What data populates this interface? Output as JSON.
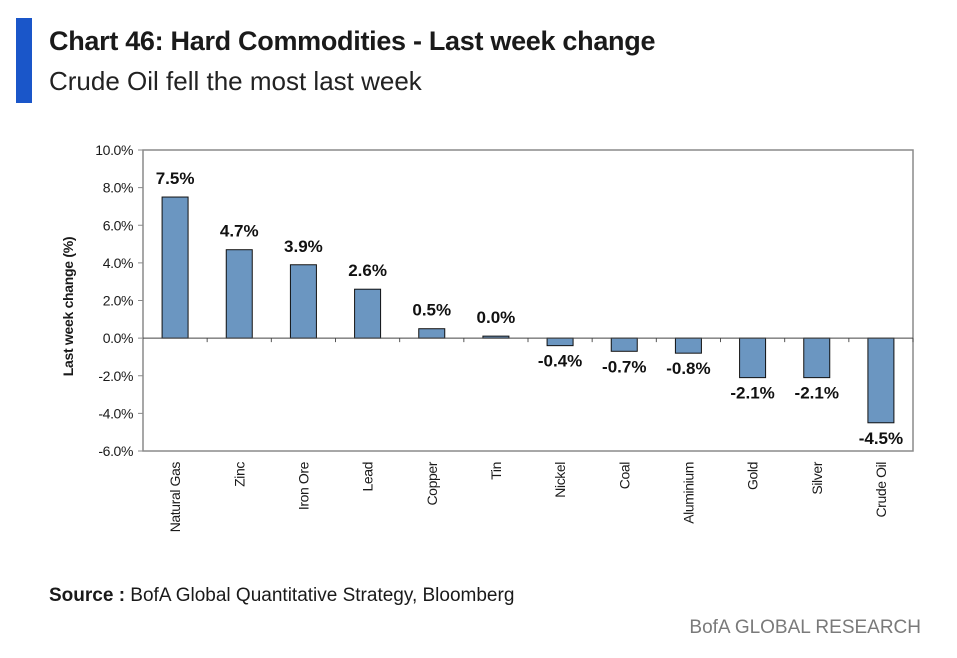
{
  "header": {
    "title": "Chart 46: Hard Commodities - Last week change",
    "subtitle": "Crude Oil fell the most last week"
  },
  "footer": {
    "source_label": "Source :",
    "source_text": " BofA Global Quantitative Strategy, Bloomberg",
    "brand": "BofA GLOBAL RESEARCH"
  },
  "colors": {
    "accent": "#1a56c9",
    "bar_fill": "#6b96c1",
    "bar_stroke": "#111111"
  },
  "chart_data": {
    "type": "bar",
    "title": "Chart 46: Hard Commodities - Last week change",
    "subtitle": "Crude Oil fell the most last week",
    "xlabel": "",
    "ylabel": "Last week change (%)",
    "ylim": [
      -6.0,
      10.0
    ],
    "ytick_step": 2.0,
    "yticks": [
      "10.0%",
      "8.0%",
      "6.0%",
      "4.0%",
      "2.0%",
      "0.0%",
      "-2.0%",
      "-4.0%",
      "-6.0%"
    ],
    "grid": false,
    "categories": [
      "Natural Gas",
      "Zinc",
      "Iron Ore",
      "Lead",
      "Copper",
      "Tin",
      "Nickel",
      "Coal",
      "Aluminium",
      "Gold",
      "Silver",
      "Crude Oil"
    ],
    "values": [
      7.5,
      4.7,
      3.9,
      2.6,
      0.5,
      0.0,
      -0.4,
      -0.7,
      -0.8,
      -2.1,
      -2.1,
      -4.5
    ],
    "data_labels": [
      "7.5%",
      "4.7%",
      "3.9%",
      "2.6%",
      "0.5%",
      "0.0%",
      "-0.4%",
      "-0.7%",
      "-0.8%",
      "-2.1%",
      "-2.1%",
      "-4.5%"
    ]
  }
}
